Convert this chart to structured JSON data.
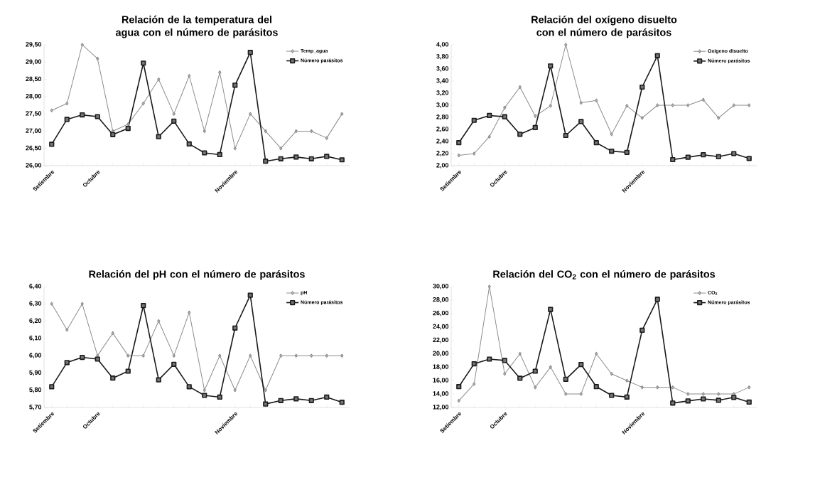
{
  "chart_data": [
    {
      "type": "line",
      "title": "Relación de la temperatura del agua con el número de parásitos",
      "categories": [
        "Setiembre",
        null,
        null,
        "Octubre",
        null,
        null,
        null,
        null,
        null,
        null,
        null,
        null,
        "Noviembre",
        null,
        null,
        null,
        null,
        null,
        null,
        null
      ],
      "ylim": [
        26,
        29.5
      ],
      "yticks": [
        {
          "value": 26,
          "label": "26,00"
        },
        {
          "value": 26.5,
          "label": "26,50"
        },
        {
          "value": 27,
          "label": "27,00"
        },
        {
          "value": 27.5,
          "label": "27,50"
        },
        {
          "value": 28,
          "label": "28,00"
        },
        {
          "value": 28.5,
          "label": "28,50"
        },
        {
          "value": 29,
          "label": "29,00"
        },
        {
          "value": 29.5,
          "label": "29,50"
        }
      ],
      "legend": "top right",
      "series": [
        {
          "name": "Temp_agua",
          "color": "#8c8c8c",
          "marker": "diamond",
          "values": [
            27.6,
            27.8,
            29.5,
            29.1,
            27.0,
            27.2,
            27.8,
            28.5,
            27.5,
            28.6,
            27.0,
            28.7,
            26.5,
            27.5,
            27.0,
            26.5,
            27.0,
            27.0,
            26.8,
            27.5
          ]
        },
        {
          "name": "Número parásitos",
          "color": "#1a1a1a",
          "marker": "square",
          "values": [
            26.62,
            27.34,
            27.47,
            27.42,
            26.9,
            27.08,
            28.97,
            26.84,
            27.29,
            26.63,
            26.37,
            26.32,
            28.33,
            29.28,
            26.13,
            26.2,
            26.25,
            26.2,
            26.27,
            26.17
          ]
        }
      ]
    },
    {
      "type": "line",
      "title": "Relación del oxígeno disuelto con el número de parásitos",
      "categories": [
        "Setiembre",
        null,
        null,
        "Octubre",
        null,
        null,
        null,
        null,
        null,
        null,
        null,
        null,
        "Noviembre",
        null,
        null,
        null,
        null,
        null,
        null,
        null
      ],
      "ylim": [
        2,
        4
      ],
      "yticks": [
        {
          "value": 2,
          "label": "2,00"
        },
        {
          "value": 2.2,
          "label": "2,20"
        },
        {
          "value": 2.4,
          "label": "2,40"
        },
        {
          "value": 2.6,
          "label": "2,60"
        },
        {
          "value": 2.8,
          "label": "2,80"
        },
        {
          "value": 3,
          "label": "3,00"
        },
        {
          "value": 3.2,
          "label": "3,20"
        },
        {
          "value": 3.4,
          "label": "3,40"
        },
        {
          "value": 3.6,
          "label": "3,60"
        },
        {
          "value": 3.8,
          "label": "3,80"
        },
        {
          "value": 4,
          "label": "4,00"
        }
      ],
      "legend": "top right",
      "series": [
        {
          "name": "Oxígeno disuelto",
          "color": "#8c8c8c",
          "marker": "diamond",
          "values": [
            2.17,
            2.2,
            2.48,
            2.96,
            3.3,
            2.82,
            2.99,
            4.0,
            3.04,
            3.08,
            2.52,
            2.99,
            2.79,
            3.0,
            3.0,
            3.0,
            3.09,
            2.79,
            3.0,
            3.0
          ]
        },
        {
          "name": "Número parásitos",
          "color": "#1a1a1a",
          "marker": "square",
          "values": [
            2.38,
            2.75,
            2.83,
            2.81,
            2.52,
            2.63,
            3.65,
            2.5,
            2.73,
            2.38,
            2.24,
            2.22,
            3.3,
            3.82,
            2.1,
            2.14,
            2.18,
            2.15,
            2.2,
            2.12
          ]
        }
      ]
    },
    {
      "type": "line",
      "title": "Relación del pH con el número de parásitos",
      "categories": [
        "Setiembre",
        null,
        null,
        "Octubre",
        null,
        null,
        null,
        null,
        null,
        null,
        null,
        null,
        "Noviembre",
        null,
        null,
        null,
        null,
        null,
        null,
        null
      ],
      "ylim": [
        5.7,
        6.4
      ],
      "yticks": [
        {
          "value": 5.7,
          "label": "5,70"
        },
        {
          "value": 5.8,
          "label": "5,80"
        },
        {
          "value": 5.9,
          "label": "5,90"
        },
        {
          "value": 6.0,
          "label": "6,00"
        },
        {
          "value": 6.1,
          "label": "6,10"
        },
        {
          "value": 6.2,
          "label": "6,20"
        },
        {
          "value": 6.3,
          "label": "6,30"
        },
        {
          "value": 6.4,
          "label": "6,40"
        }
      ],
      "legend": "top right",
      "series": [
        {
          "name": "pH",
          "color": "#8c8c8c",
          "marker": "diamond",
          "values": [
            6.3,
            6.15,
            6.3,
            6.0,
            6.13,
            6.0,
            6.0,
            6.2,
            6.0,
            6.25,
            5.8,
            6.0,
            5.8,
            6.0,
            5.8,
            6.0,
            6.0,
            6.0,
            6.0,
            6.0
          ]
        },
        {
          "name": "Número parásitos",
          "color": "#1a1a1a",
          "marker": "square",
          "values": [
            5.82,
            5.96,
            5.99,
            5.98,
            5.87,
            5.91,
            6.29,
            5.86,
            5.95,
            5.82,
            5.77,
            5.76,
            6.16,
            6.35,
            5.72,
            5.74,
            5.75,
            5.74,
            5.76,
            5.73
          ]
        }
      ]
    },
    {
      "type": "line",
      "title": "Relación del CO$_{2}$ con el número de parásitos",
      "categories": [
        "Setiembre",
        null,
        null,
        "Octubre",
        null,
        null,
        null,
        null,
        null,
        null,
        null,
        null,
        "Noviembre",
        null,
        null,
        null,
        null,
        null,
        null,
        null
      ],
      "ylim": [
        12,
        30
      ],
      "yticks": [
        {
          "value": 12,
          "label": "12,00"
        },
        {
          "value": 14,
          "label": "14,00"
        },
        {
          "value": 16,
          "label": "16,00"
        },
        {
          "value": 18,
          "label": "18,00"
        },
        {
          "value": 20,
          "label": "20,00"
        },
        {
          "value": 22,
          "label": "22,00"
        },
        {
          "value": 24,
          "label": "24,00"
        },
        {
          "value": 26,
          "label": "26,00"
        },
        {
          "value": 28,
          "label": "28,00"
        },
        {
          "value": 30,
          "label": "30,00"
        }
      ],
      "legend": "top right",
      "series": [
        {
          "name": "CO$_{2}$",
          "color": "#8c8c8c",
          "marker": "diamond",
          "values": [
            13,
            15.5,
            30,
            17,
            20,
            15,
            18,
            14,
            14,
            20,
            17,
            16,
            15,
            15,
            15,
            14,
            14,
            14,
            14,
            15
          ]
        },
        {
          "name": "Número parásitos",
          "color": "#1a1a1a",
          "marker": "square",
          "values": [
            15.1,
            18.5,
            19.2,
            19.0,
            16.35,
            17.4,
            26.6,
            16.2,
            18.4,
            15.1,
            13.8,
            13.55,
            23.5,
            28.1,
            12.65,
            12.97,
            13.27,
            13.07,
            13.5,
            12.8
          ]
        }
      ]
    }
  ]
}
